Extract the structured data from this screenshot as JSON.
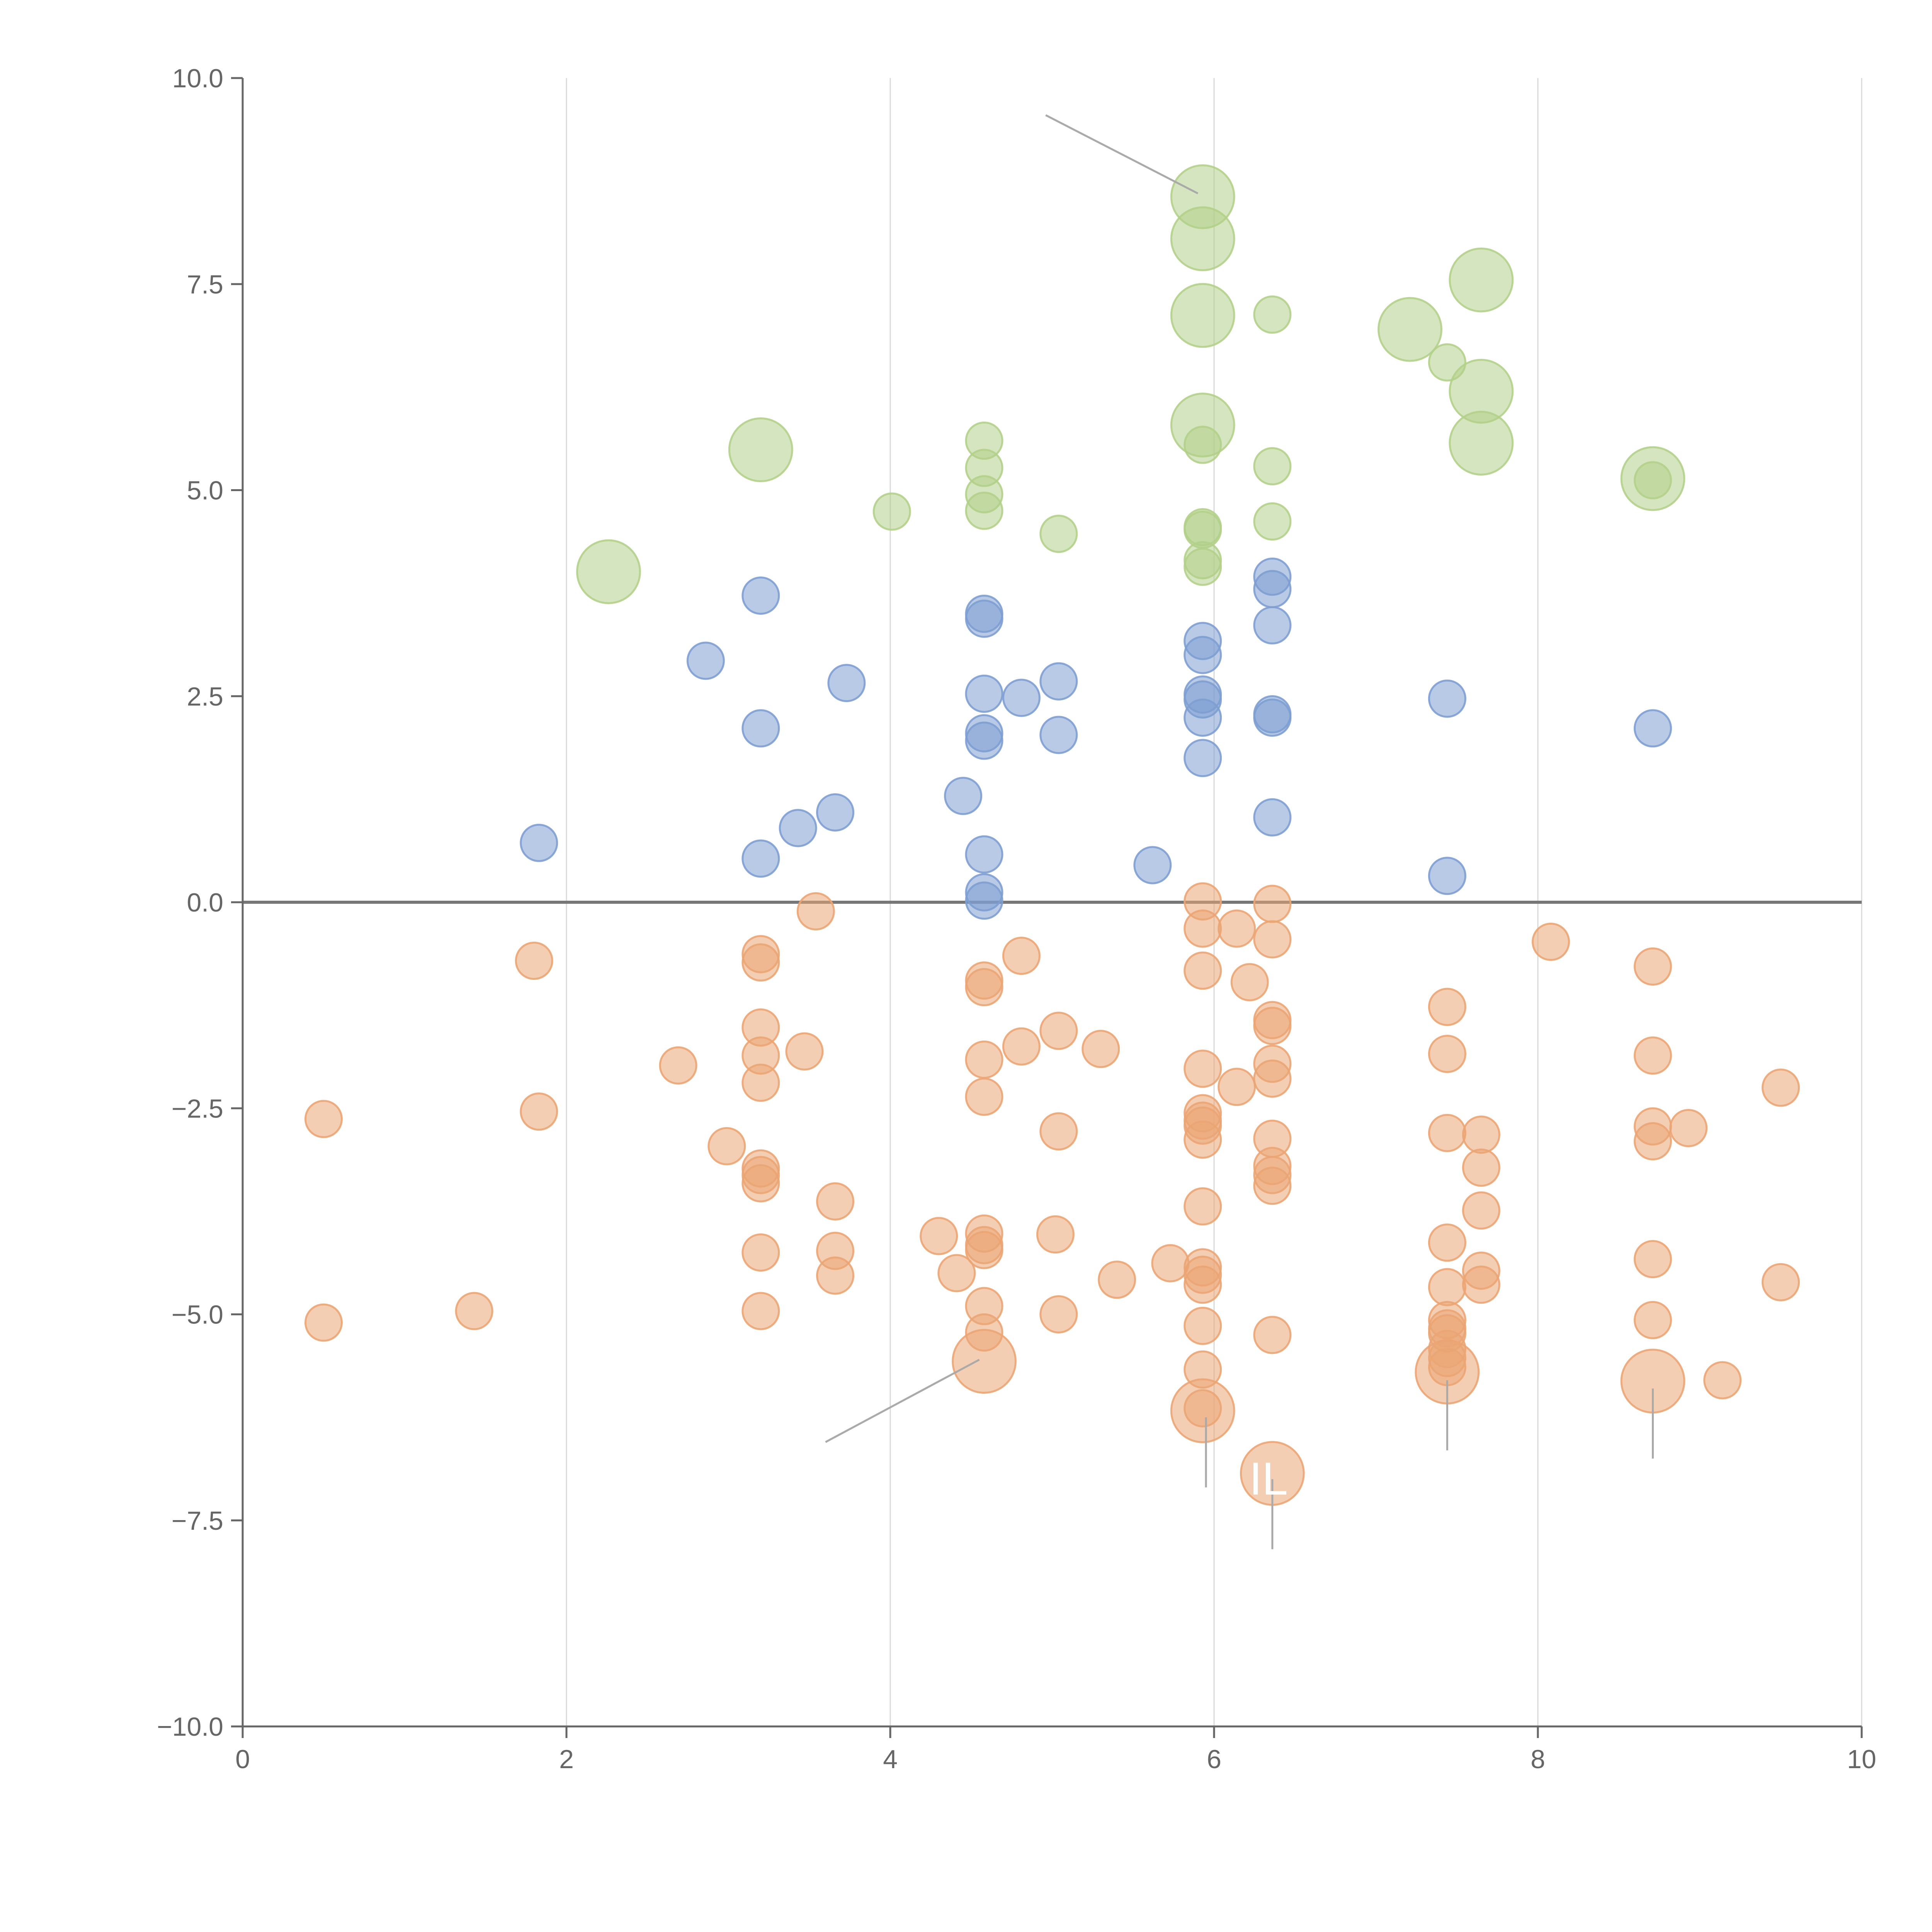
{
  "chart_data": {
    "type": "scatter",
    "title": "",
    "xlabel": "",
    "ylabel": "",
    "xlim": [
      0,
      10
    ],
    "ylim": [
      -10,
      10
    ],
    "xticks": [
      0,
      2,
      4,
      6,
      8,
      10
    ],
    "yticks": [
      -10,
      -7.5,
      -5,
      -2.5,
      0,
      2.5,
      5,
      7.5,
      10
    ],
    "xtick_labels": [
      "0",
      "2",
      "4",
      "6",
      "8",
      "10"
    ],
    "ytick_labels": [
      "−10.0",
      "−7.5",
      "−5.0",
      "−2.5",
      "0.0",
      "2.5",
      "5.0",
      "7.5",
      "10.0"
    ],
    "grid": "vertical",
    "zero_line": 0,
    "colors": {
      "blue": "#7e9fd1",
      "orange": "#eba574",
      "green": "#b3d08a",
      "axis": "#666666",
      "grid": "#d8d8d8",
      "zero": "#777777",
      "leader": "#aaaaaa"
    },
    "series": [
      {
        "name": "blue",
        "color": "#7e9fd1",
        "points": [
          [
            1.83,
            0.72,
            1
          ],
          [
            3.2,
            3.72,
            1
          ],
          [
            2.86,
            2.93,
            1
          ],
          [
            3.2,
            2.11,
            1
          ],
          [
            3.2,
            0.53,
            1
          ],
          [
            3.43,
            0.9,
            1
          ],
          [
            3.66,
            1.09,
            1
          ],
          [
            3.73,
            2.66,
            1
          ],
          [
            4.45,
            1.29,
            1
          ],
          [
            4.58,
            3.5,
            1
          ],
          [
            4.58,
            3.44,
            1
          ],
          [
            4.58,
            2.53,
            1
          ],
          [
            4.58,
            2.05,
            1
          ],
          [
            4.58,
            1.96,
            1
          ],
          [
            4.58,
            0.58,
            1
          ],
          [
            4.58,
            0.12,
            1
          ],
          [
            4.58,
            0.02,
            1
          ],
          [
            4.81,
            2.48,
            1
          ],
          [
            5.04,
            2.68,
            1
          ],
          [
            5.04,
            2.03,
            1
          ],
          [
            5.62,
            0.45,
            1
          ],
          [
            5.93,
            3.17,
            1
          ],
          [
            5.93,
            3.0,
            1
          ],
          [
            5.93,
            2.52,
            1
          ],
          [
            5.93,
            2.46,
            1
          ],
          [
            5.93,
            2.24,
            1
          ],
          [
            5.93,
            1.75,
            1
          ],
          [
            6.36,
            3.95,
            1
          ],
          [
            6.36,
            3.8,
            1
          ],
          [
            6.36,
            3.36,
            1
          ],
          [
            6.36,
            2.28,
            1
          ],
          [
            6.36,
            2.24,
            1
          ],
          [
            6.36,
            1.03,
            1
          ],
          [
            7.44,
            2.47,
            1
          ],
          [
            7.44,
            0.32,
            1
          ],
          [
            8.71,
            2.11,
            1
          ]
        ]
      },
      {
        "name": "orange",
        "color": "#eba574",
        "points": [
          [
            0.5,
            -2.63,
            1
          ],
          [
            0.5,
            -5.1,
            1
          ],
          [
            1.43,
            -4.96,
            1
          ],
          [
            1.8,
            -0.71,
            1
          ],
          [
            1.83,
            -2.54,
            1
          ],
          [
            2.69,
            -1.98,
            1
          ],
          [
            2.99,
            -2.96,
            1
          ],
          [
            3.2,
            -0.63,
            1
          ],
          [
            3.2,
            -0.73,
            1
          ],
          [
            3.2,
            -1.52,
            1
          ],
          [
            3.2,
            -1.86,
            1
          ],
          [
            3.2,
            -2.19,
            1
          ],
          [
            3.2,
            -3.23,
            1
          ],
          [
            3.2,
            -3.31,
            1
          ],
          [
            3.2,
            -3.41,
            1
          ],
          [
            3.2,
            -4.25,
            1
          ],
          [
            3.2,
            -4.96,
            1
          ],
          [
            3.47,
            -1.81,
            1
          ],
          [
            3.54,
            -0.11,
            1
          ],
          [
            3.66,
            -3.63,
            1
          ],
          [
            3.66,
            -4.23,
            1
          ],
          [
            3.66,
            -4.53,
            1
          ],
          [
            4.3,
            -4.05,
            1
          ],
          [
            4.41,
            -4.5,
            1
          ],
          [
            4.58,
            -0.95,
            1
          ],
          [
            4.58,
            -1.03,
            1
          ],
          [
            4.58,
            -1.91,
            1
          ],
          [
            4.58,
            -2.36,
            1
          ],
          [
            4.58,
            -4.02,
            1
          ],
          [
            4.58,
            -4.16,
            1
          ],
          [
            4.58,
            -4.22,
            1
          ],
          [
            4.58,
            -4.9,
            1
          ],
          [
            4.58,
            -5.22,
            1
          ],
          [
            4.58,
            -5.57,
            3
          ],
          [
            4.81,
            -0.65,
            1
          ],
          [
            4.81,
            -1.75,
            1
          ],
          [
            5.02,
            -4.03,
            1
          ],
          [
            5.04,
            -1.56,
            1
          ],
          [
            5.04,
            -2.78,
            1
          ],
          [
            5.04,
            -5.0,
            1
          ],
          [
            5.3,
            -1.78,
            1
          ],
          [
            5.4,
            -4.58,
            1
          ],
          [
            5.73,
            -4.38,
            1
          ],
          [
            5.93,
            0.01,
            1
          ],
          [
            5.93,
            -0.32,
            1
          ],
          [
            5.93,
            -0.83,
            1
          ],
          [
            5.93,
            -2.02,
            1
          ],
          [
            5.93,
            -2.56,
            1
          ],
          [
            5.93,
            -2.65,
            1
          ],
          [
            5.93,
            -2.71,
            1
          ],
          [
            5.93,
            -2.88,
            1
          ],
          [
            5.93,
            -3.69,
            1
          ],
          [
            5.93,
            -4.43,
            1
          ],
          [
            5.93,
            -4.52,
            1
          ],
          [
            5.93,
            -4.64,
            1
          ],
          [
            5.93,
            -5.14,
            1
          ],
          [
            5.93,
            -5.67,
            1
          ],
          [
            5.93,
            -6.14,
            1
          ],
          [
            5.93,
            -6.17,
            3
          ],
          [
            6.14,
            -0.32,
            1
          ],
          [
            6.14,
            -2.24,
            1
          ],
          [
            6.22,
            -0.97,
            1
          ],
          [
            6.36,
            -0.02,
            1
          ],
          [
            6.36,
            -0.45,
            1
          ],
          [
            6.36,
            -1.43,
            1
          ],
          [
            6.36,
            -1.5,
            1
          ],
          [
            6.36,
            -1.96,
            1
          ],
          [
            6.36,
            -2.14,
            1
          ],
          [
            6.36,
            -2.87,
            1
          ],
          [
            6.36,
            -3.2,
            1
          ],
          [
            6.36,
            -3.31,
            1
          ],
          [
            6.36,
            -3.44,
            1
          ],
          [
            6.36,
            -5.25,
            1
          ],
          [
            6.36,
            -6.93,
            3
          ],
          [
            7.44,
            -1.27,
            1
          ],
          [
            7.44,
            -1.84,
            1
          ],
          [
            7.44,
            -2.8,
            1
          ],
          [
            7.44,
            -4.13,
            1
          ],
          [
            7.44,
            -4.67,
            1
          ],
          [
            7.44,
            -5.07,
            1
          ],
          [
            7.44,
            -5.17,
            1
          ],
          [
            7.44,
            -5.23,
            1
          ],
          [
            7.44,
            -5.42,
            1
          ],
          [
            7.44,
            -5.53,
            1
          ],
          [
            7.44,
            -5.64,
            1
          ],
          [
            7.44,
            -5.7,
            3
          ],
          [
            7.65,
            -2.82,
            1
          ],
          [
            7.65,
            -3.22,
            1
          ],
          [
            7.65,
            -3.74,
            1
          ],
          [
            7.65,
            -4.47,
            1
          ],
          [
            7.65,
            -4.64,
            1
          ],
          [
            8.08,
            -0.48,
            1
          ],
          [
            8.71,
            -0.78,
            1
          ],
          [
            8.71,
            -1.86,
            1
          ],
          [
            8.71,
            -2.72,
            1
          ],
          [
            8.71,
            -2.9,
            1
          ],
          [
            8.71,
            -4.33,
            1
          ],
          [
            8.71,
            -5.07,
            1
          ],
          [
            8.71,
            -5.81,
            3
          ],
          [
            8.93,
            -2.74,
            1
          ],
          [
            9.14,
            -5.8,
            1
          ],
          [
            9.5,
            -2.25,
            1
          ],
          [
            9.5,
            -4.61,
            1
          ]
        ]
      },
      {
        "name": "green",
        "color": "#b3d08a",
        "points": [
          [
            2.26,
            4.01,
            3
          ],
          [
            3.2,
            5.49,
            3
          ],
          [
            4.01,
            4.74,
            1
          ],
          [
            4.58,
            5.6,
            1
          ],
          [
            4.58,
            5.27,
            1
          ],
          [
            4.58,
            4.95,
            1
          ],
          [
            4.58,
            4.75,
            1
          ],
          [
            5.04,
            4.47,
            1
          ],
          [
            5.93,
            8.56,
            3
          ],
          [
            5.93,
            8.05,
            3
          ],
          [
            5.93,
            7.12,
            3
          ],
          [
            5.93,
            5.79,
            3
          ],
          [
            5.93,
            5.55,
            1
          ],
          [
            5.93,
            4.55,
            1
          ],
          [
            5.93,
            4.52,
            1
          ],
          [
            5.93,
            4.15,
            1
          ],
          [
            5.93,
            4.07,
            1
          ],
          [
            6.36,
            7.13,
            1
          ],
          [
            6.36,
            5.29,
            1
          ],
          [
            6.36,
            4.62,
            1
          ],
          [
            7.21,
            6.95,
            3
          ],
          [
            7.44,
            6.55,
            1
          ],
          [
            7.65,
            7.55,
            3
          ],
          [
            7.65,
            6.2,
            3
          ],
          [
            7.65,
            5.57,
            3
          ],
          [
            8.71,
            5.14,
            3
          ],
          [
            8.71,
            5.12,
            1
          ]
        ]
      }
    ],
    "annotations": [
      {
        "label": "",
        "x": 5.9,
        "y": 8.6,
        "tx": 4.96,
        "ty": 9.55
      },
      {
        "label": "",
        "x": 4.55,
        "y": -5.55,
        "tx": 3.6,
        "ty": -6.55
      },
      {
        "label": "",
        "x": 5.95,
        "y": -6.25,
        "tx": 5.95,
        "ty": -7.1
      },
      {
        "label": "IL",
        "x": 6.36,
        "y": -7.0,
        "tx": 6.36,
        "ty": -7.85
      },
      {
        "label": "",
        "x": 7.44,
        "y": -5.8,
        "tx": 7.44,
        "ty": -6.65
      },
      {
        "label": "",
        "x": 8.71,
        "y": -5.9,
        "tx": 8.71,
        "ty": -6.75
      }
    ]
  }
}
